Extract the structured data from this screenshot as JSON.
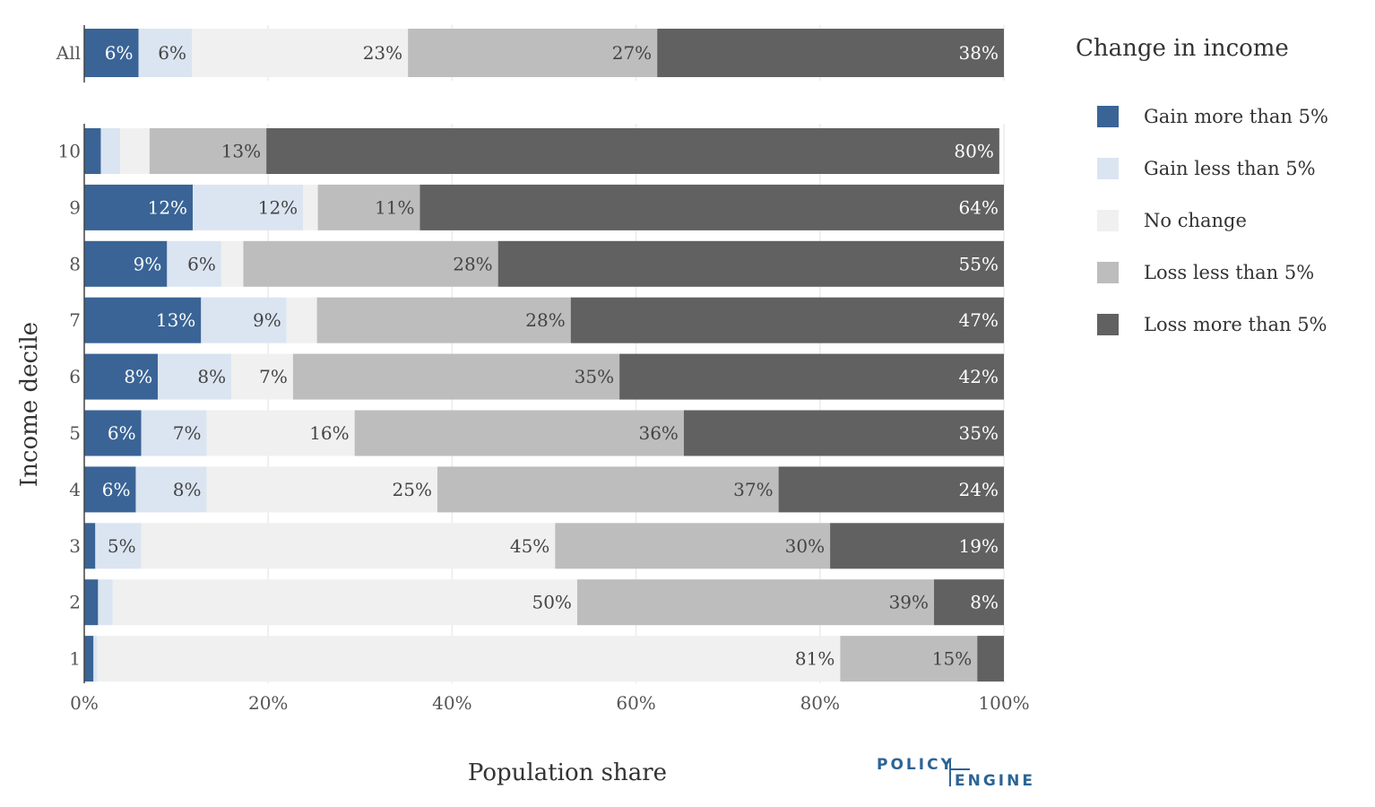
{
  "chart_data": {
    "type": "bar",
    "orientation": "horizontal",
    "stacked": true,
    "xlabel": "Population share",
    "ylabel": "Income decile",
    "xlim": [
      0,
      100
    ],
    "x_ticks": [
      "0%",
      "20%",
      "40%",
      "60%",
      "80%",
      "100%"
    ],
    "grid": true,
    "legend_title": "Change in income",
    "legend_position": "right",
    "series": [
      {
        "name": "Gain more than 5%",
        "color": "#3a6496"
      },
      {
        "name": "Gain less than 5%",
        "color": "#dbe5f1"
      },
      {
        "name": "No change",
        "color": "#f0f0f0"
      },
      {
        "name": "Loss less than 5%",
        "color": "#bdbdbd"
      },
      {
        "name": "Loss more than 5%",
        "color": "#616161"
      }
    ],
    "groups": [
      {
        "category": "All",
        "values": [
          5.9,
          5.8,
          23.5,
          27.1,
          37.7
        ],
        "labels": [
          "6%",
          "6%",
          "23%",
          "27%",
          "38%"
        ]
      },
      {
        "category": "10",
        "values": [
          1.8,
          2.1,
          3.2,
          12.7,
          79.7
        ],
        "labels": [
          "",
          "",
          "",
          "13%",
          "80%"
        ]
      },
      {
        "category": "9",
        "values": [
          11.8,
          12.0,
          1.6,
          11.1,
          63.5
        ],
        "labels": [
          "12%",
          "12%",
          "",
          "11%",
          "64%"
        ]
      },
      {
        "category": "8",
        "values": [
          9.0,
          5.9,
          2.4,
          27.7,
          55.0
        ],
        "labels": [
          "9%",
          "6%",
          "",
          "28%",
          "55%"
        ]
      },
      {
        "category": "7",
        "values": [
          12.7,
          9.3,
          3.3,
          27.6,
          47.1
        ],
        "labels": [
          "13%",
          "9%",
          "",
          "28%",
          "47%"
        ]
      },
      {
        "category": "6",
        "values": [
          8.0,
          8.0,
          6.7,
          35.5,
          41.8
        ],
        "labels": [
          "8%",
          "8%",
          "7%",
          "35%",
          "42%"
        ]
      },
      {
        "category": "5",
        "values": [
          6.2,
          7.1,
          16.1,
          35.8,
          34.8
        ],
        "labels": [
          "6%",
          "7%",
          "16%",
          "36%",
          "35%"
        ]
      },
      {
        "category": "4",
        "values": [
          5.6,
          7.7,
          25.1,
          37.1,
          24.5
        ],
        "labels": [
          "6%",
          "8%",
          "25%",
          "37%",
          "24%"
        ]
      },
      {
        "category": "3",
        "values": [
          1.2,
          5.0,
          45.0,
          29.9,
          18.9
        ],
        "labels": [
          "",
          "5%",
          "45%",
          "30%",
          "19%"
        ]
      },
      {
        "category": "2",
        "values": [
          1.5,
          1.6,
          50.5,
          38.8,
          7.6
        ],
        "labels": [
          "",
          "",
          "50%",
          "39%",
          "8%"
        ]
      },
      {
        "category": "1",
        "values": [
          1.0,
          0.4,
          80.8,
          14.9,
          2.9
        ],
        "labels": [
          "",
          "",
          "81%",
          "15%",
          ""
        ]
      }
    ]
  },
  "logo": {
    "line1": "POLICY",
    "line2": "ENGINE"
  }
}
